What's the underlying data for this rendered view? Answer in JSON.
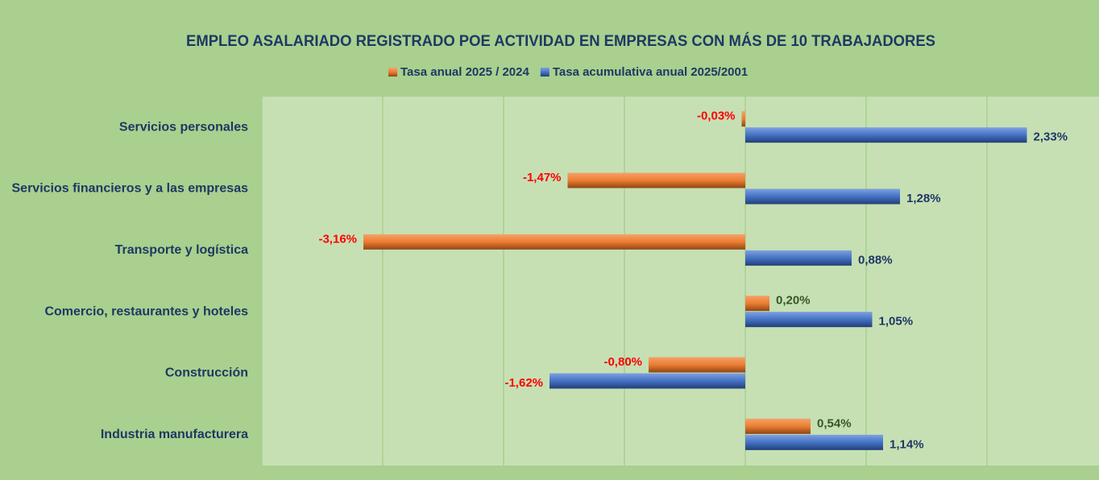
{
  "chart_data": {
    "type": "hbar",
    "title": "EMPLEO ASALARIADO REGISTRADO POE ACTIVIDAD EN EMPRESAS CON MÁS DE 10 TRABAJADORES",
    "categories": [
      "Servicios personales",
      "Servicios financieros y a las empresas",
      "Transporte y logística",
      "Comercio, restaurantes y hoteles",
      "Construcción",
      "Industria manufacturera"
    ],
    "series": [
      {
        "name": "Tasa anual 2025 / 2024",
        "color": "#ed7d31",
        "values": [
          -0.03,
          -1.47,
          -3.16,
          0.2,
          -0.8,
          0.54
        ],
        "value_labels": [
          "-0,03%",
          "-1,47%",
          "-3,16%",
          "0,20%",
          "-0,80%",
          "0,54%"
        ]
      },
      {
        "name": "Tasa acumulativa anual 2025/2001",
        "color": "#4472c4",
        "values": [
          2.33,
          1.28,
          0.88,
          1.05,
          -1.62,
          1.14
        ],
        "value_labels": [
          "2,33%",
          "1,28%",
          "0,88%",
          "1,05%",
          "-1,62%",
          "1,14%"
        ]
      }
    ],
    "xlim": [
      -4,
      2.9
    ],
    "xticks": [
      -4,
      -3,
      -2,
      -1,
      0,
      1,
      2
    ],
    "grid": true,
    "legend": "top"
  }
}
